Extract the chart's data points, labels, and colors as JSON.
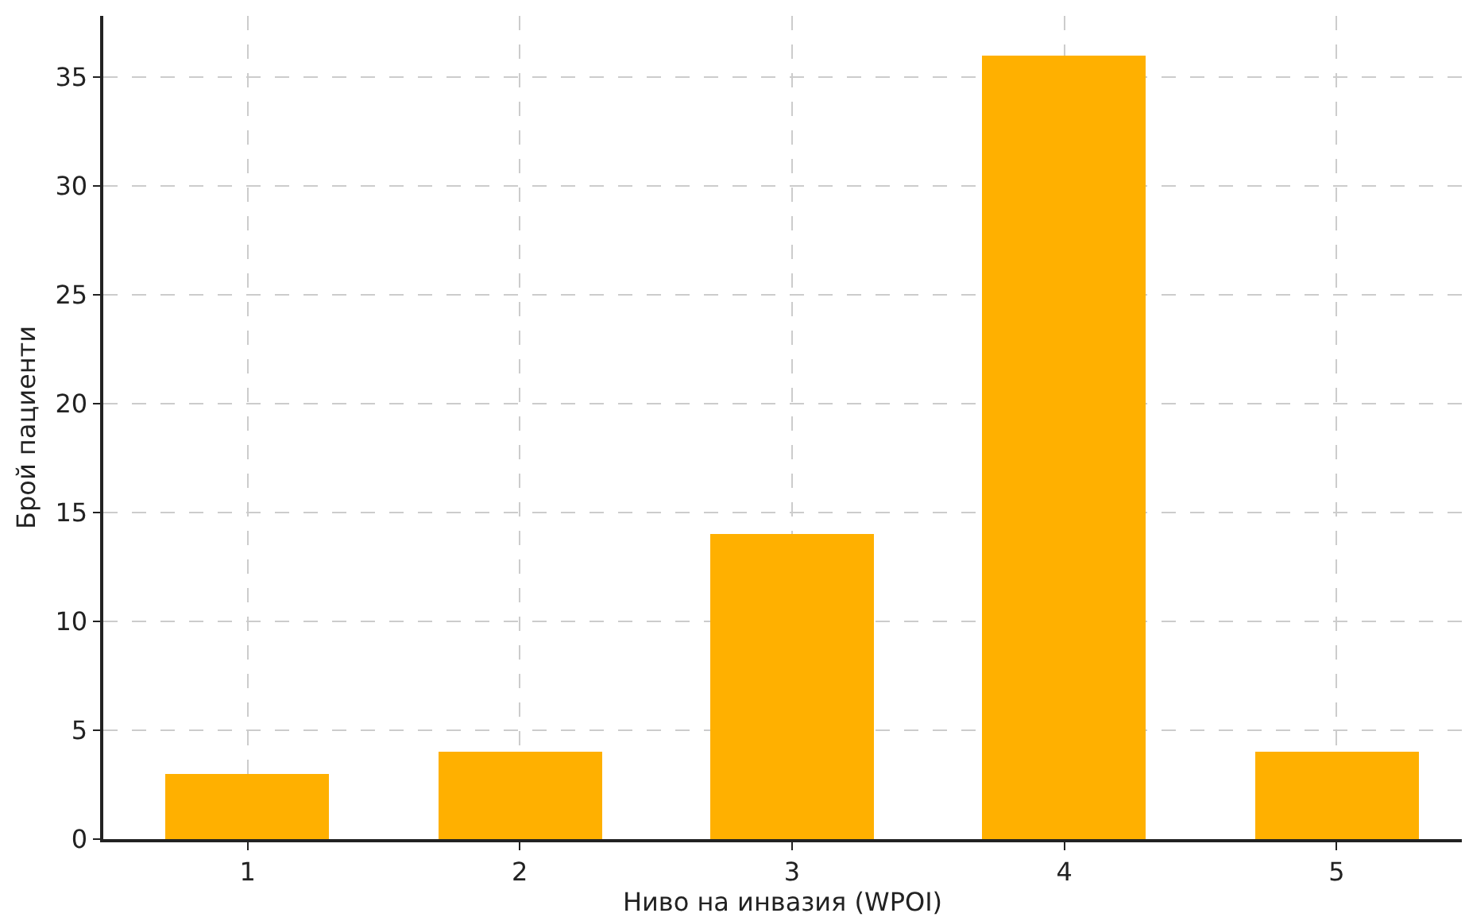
{
  "chart_data": {
    "type": "bar",
    "xlabel": "Ниво на инвазия (WPOI)",
    "ylabel": "Брой пациенти",
    "x": [
      1,
      2,
      3,
      4,
      5
    ],
    "values": [
      3,
      4,
      14,
      36,
      4
    ],
    "color": "#ffb000",
    "xlim": [
      0.47,
      5.46
    ],
    "xticks": [
      1,
      2,
      3,
      4,
      5
    ],
    "ylim": [
      0,
      37.8
    ],
    "yticks": [
      0,
      5,
      10,
      15,
      20,
      25,
      30,
      35
    ],
    "grid": true
  }
}
